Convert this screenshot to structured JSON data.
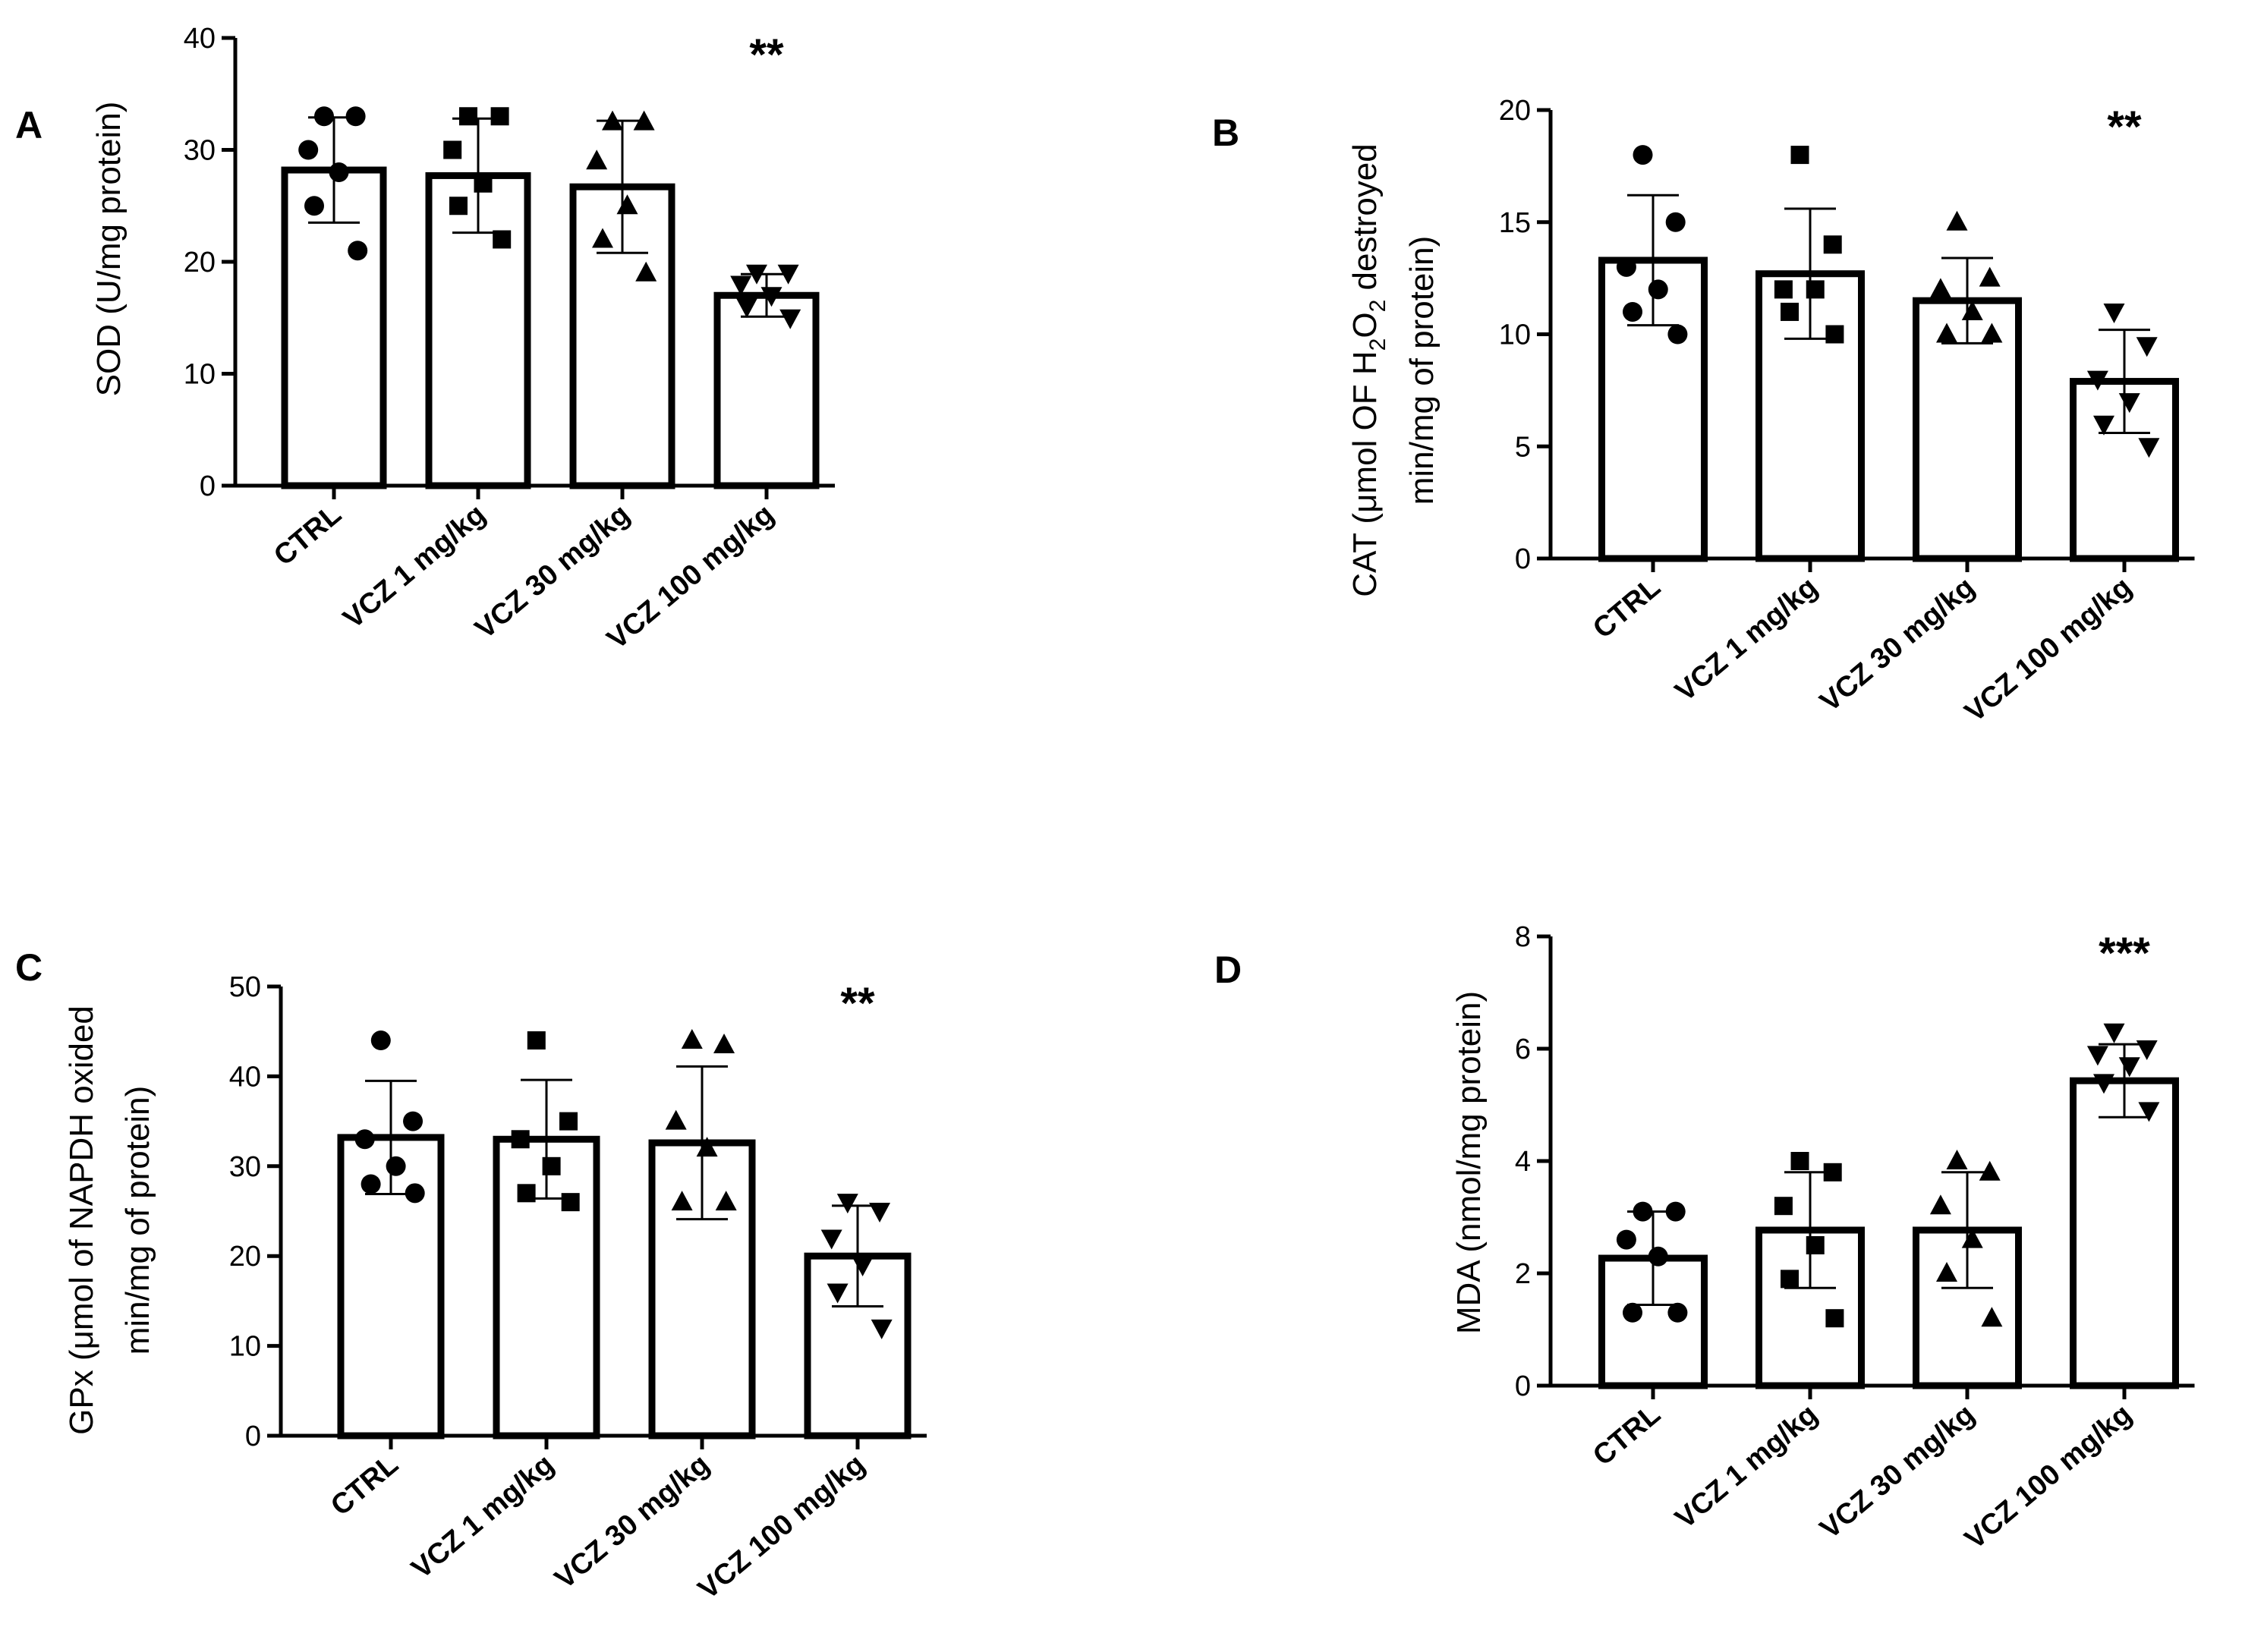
{
  "figure": {
    "colors": {
      "ink": "#000000",
      "bar_fill": "#ffffff",
      "background": "#ffffff"
    }
  },
  "chart_data": [
    {
      "panel": "A",
      "type": "bar",
      "categories": [
        "CTRL",
        "VCZ 1 mg/kg",
        "VCZ 30 mg/kg",
        "VCZ 100 mg/kg"
      ],
      "values": [
        28.2,
        27.7,
        26.7,
        17.0
      ],
      "errors": [
        4.7,
        5.1,
        5.9,
        1.9
      ],
      "points": [
        [
          33,
          33,
          30,
          28,
          25,
          21
        ],
        [
          33,
          33,
          30,
          27,
          25,
          22
        ],
        [
          32.5,
          32.5,
          29,
          25,
          22,
          19
        ],
        [
          19,
          19,
          18,
          17,
          16,
          15
        ]
      ],
      "markers": [
        "circle",
        "square",
        "triangle-up",
        "triangle-down"
      ],
      "ylabel_parts": [
        "SOD (U/mg protein)"
      ],
      "ylim": [
        0,
        40
      ],
      "yticks": [
        0,
        10,
        20,
        30,
        40
      ],
      "tick_labels": [
        "0",
        "10",
        "20",
        "30",
        "40"
      ],
      "significance": [
        {
          "index": 3,
          "text": "**"
        }
      ]
    },
    {
      "panel": "B",
      "type": "bar",
      "categories": [
        "CTRL",
        "VCZ 1 mg/kg",
        "VCZ 30 mg/kg",
        "VCZ 100 mg/kg"
      ],
      "values": [
        13.3,
        12.7,
        11.5,
        7.9
      ],
      "errors": [
        2.9,
        2.9,
        1.9,
        2.3
      ],
      "points": [
        [
          18,
          15,
          13,
          12,
          11,
          10
        ],
        [
          18,
          14,
          12,
          12,
          11,
          10
        ],
        [
          15,
          12.5,
          12,
          11,
          10,
          10
        ],
        [
          11,
          9.5,
          8,
          7,
          6,
          5
        ]
      ],
      "markers": [
        "circle",
        "square",
        "triangle-up",
        "triangle-down"
      ],
      "ylabel_parts": [
        "CAT (",
        "μ",
        "mol OF H",
        "2",
        "O",
        "2",
        " destroyed",
        "min/mg of protein)"
      ],
      "ylim": [
        0,
        20
      ],
      "yticks": [
        0,
        5,
        10,
        15,
        20
      ],
      "tick_labels": [
        "0",
        "5",
        "10",
        "15",
        "20"
      ],
      "significance": [
        {
          "index": 3,
          "text": "**"
        }
      ]
    },
    {
      "panel": "C",
      "type": "bar",
      "categories": [
        "CTRL",
        "VCZ 1 mg/kg",
        "VCZ 30 mg/kg",
        "VCZ 100 mg/kg"
      ],
      "values": [
        33.2,
        33.0,
        32.6,
        20.0
      ],
      "errors": [
        6.3,
        6.6,
        8.5,
        5.6
      ],
      "points": [
        [
          44,
          35,
          33,
          30,
          28,
          27
        ],
        [
          44,
          35,
          33,
          30,
          27,
          26
        ],
        [
          44,
          43.5,
          35,
          32,
          26,
          26
        ],
        [
          26,
          25,
          22,
          19,
          16,
          12
        ]
      ],
      "markers": [
        "circle",
        "square",
        "triangle-up",
        "triangle-down"
      ],
      "ylabel_parts": [
        "GPx (",
        "μ",
        "mol of NAPDH oxided",
        "min/mg of protein)"
      ],
      "ylim": [
        0,
        50
      ],
      "yticks": [
        0,
        10,
        20,
        30,
        40,
        50
      ],
      "tick_labels": [
        "0",
        "10",
        "20",
        "30",
        "40",
        "50"
      ],
      "significance": [
        {
          "index": 3,
          "text": "**"
        }
      ]
    },
    {
      "panel": "D",
      "type": "bar",
      "categories": [
        "CTRL",
        "VCZ 1 mg/kg",
        "VCZ 30 mg/kg",
        "VCZ 100 mg/kg"
      ],
      "values": [
        2.27,
        2.77,
        2.77,
        5.43
      ],
      "errors": [
        0.83,
        1.03,
        1.03,
        0.65
      ],
      "points": [
        [
          3.1,
          3.1,
          2.6,
          2.3,
          1.3,
          1.3
        ],
        [
          4.0,
          3.8,
          3.2,
          2.5,
          1.9,
          1.2
        ],
        [
          4.0,
          3.8,
          3.2,
          2.6,
          2.0,
          1.2
        ],
        [
          6.3,
          6.0,
          5.9,
          5.7,
          5.4,
          4.9
        ]
      ],
      "markers": [
        "circle",
        "square",
        "triangle-up",
        "triangle-down"
      ],
      "ylabel_parts": [
        "MDA (nmol/mg protein)"
      ],
      "ylim": [
        0,
        8
      ],
      "yticks": [
        0,
        2,
        4,
        6,
        8
      ],
      "tick_labels": [
        "0",
        "2",
        "4",
        "6",
        "8"
      ],
      "significance": [
        {
          "index": 3,
          "text": "***"
        }
      ]
    }
  ]
}
